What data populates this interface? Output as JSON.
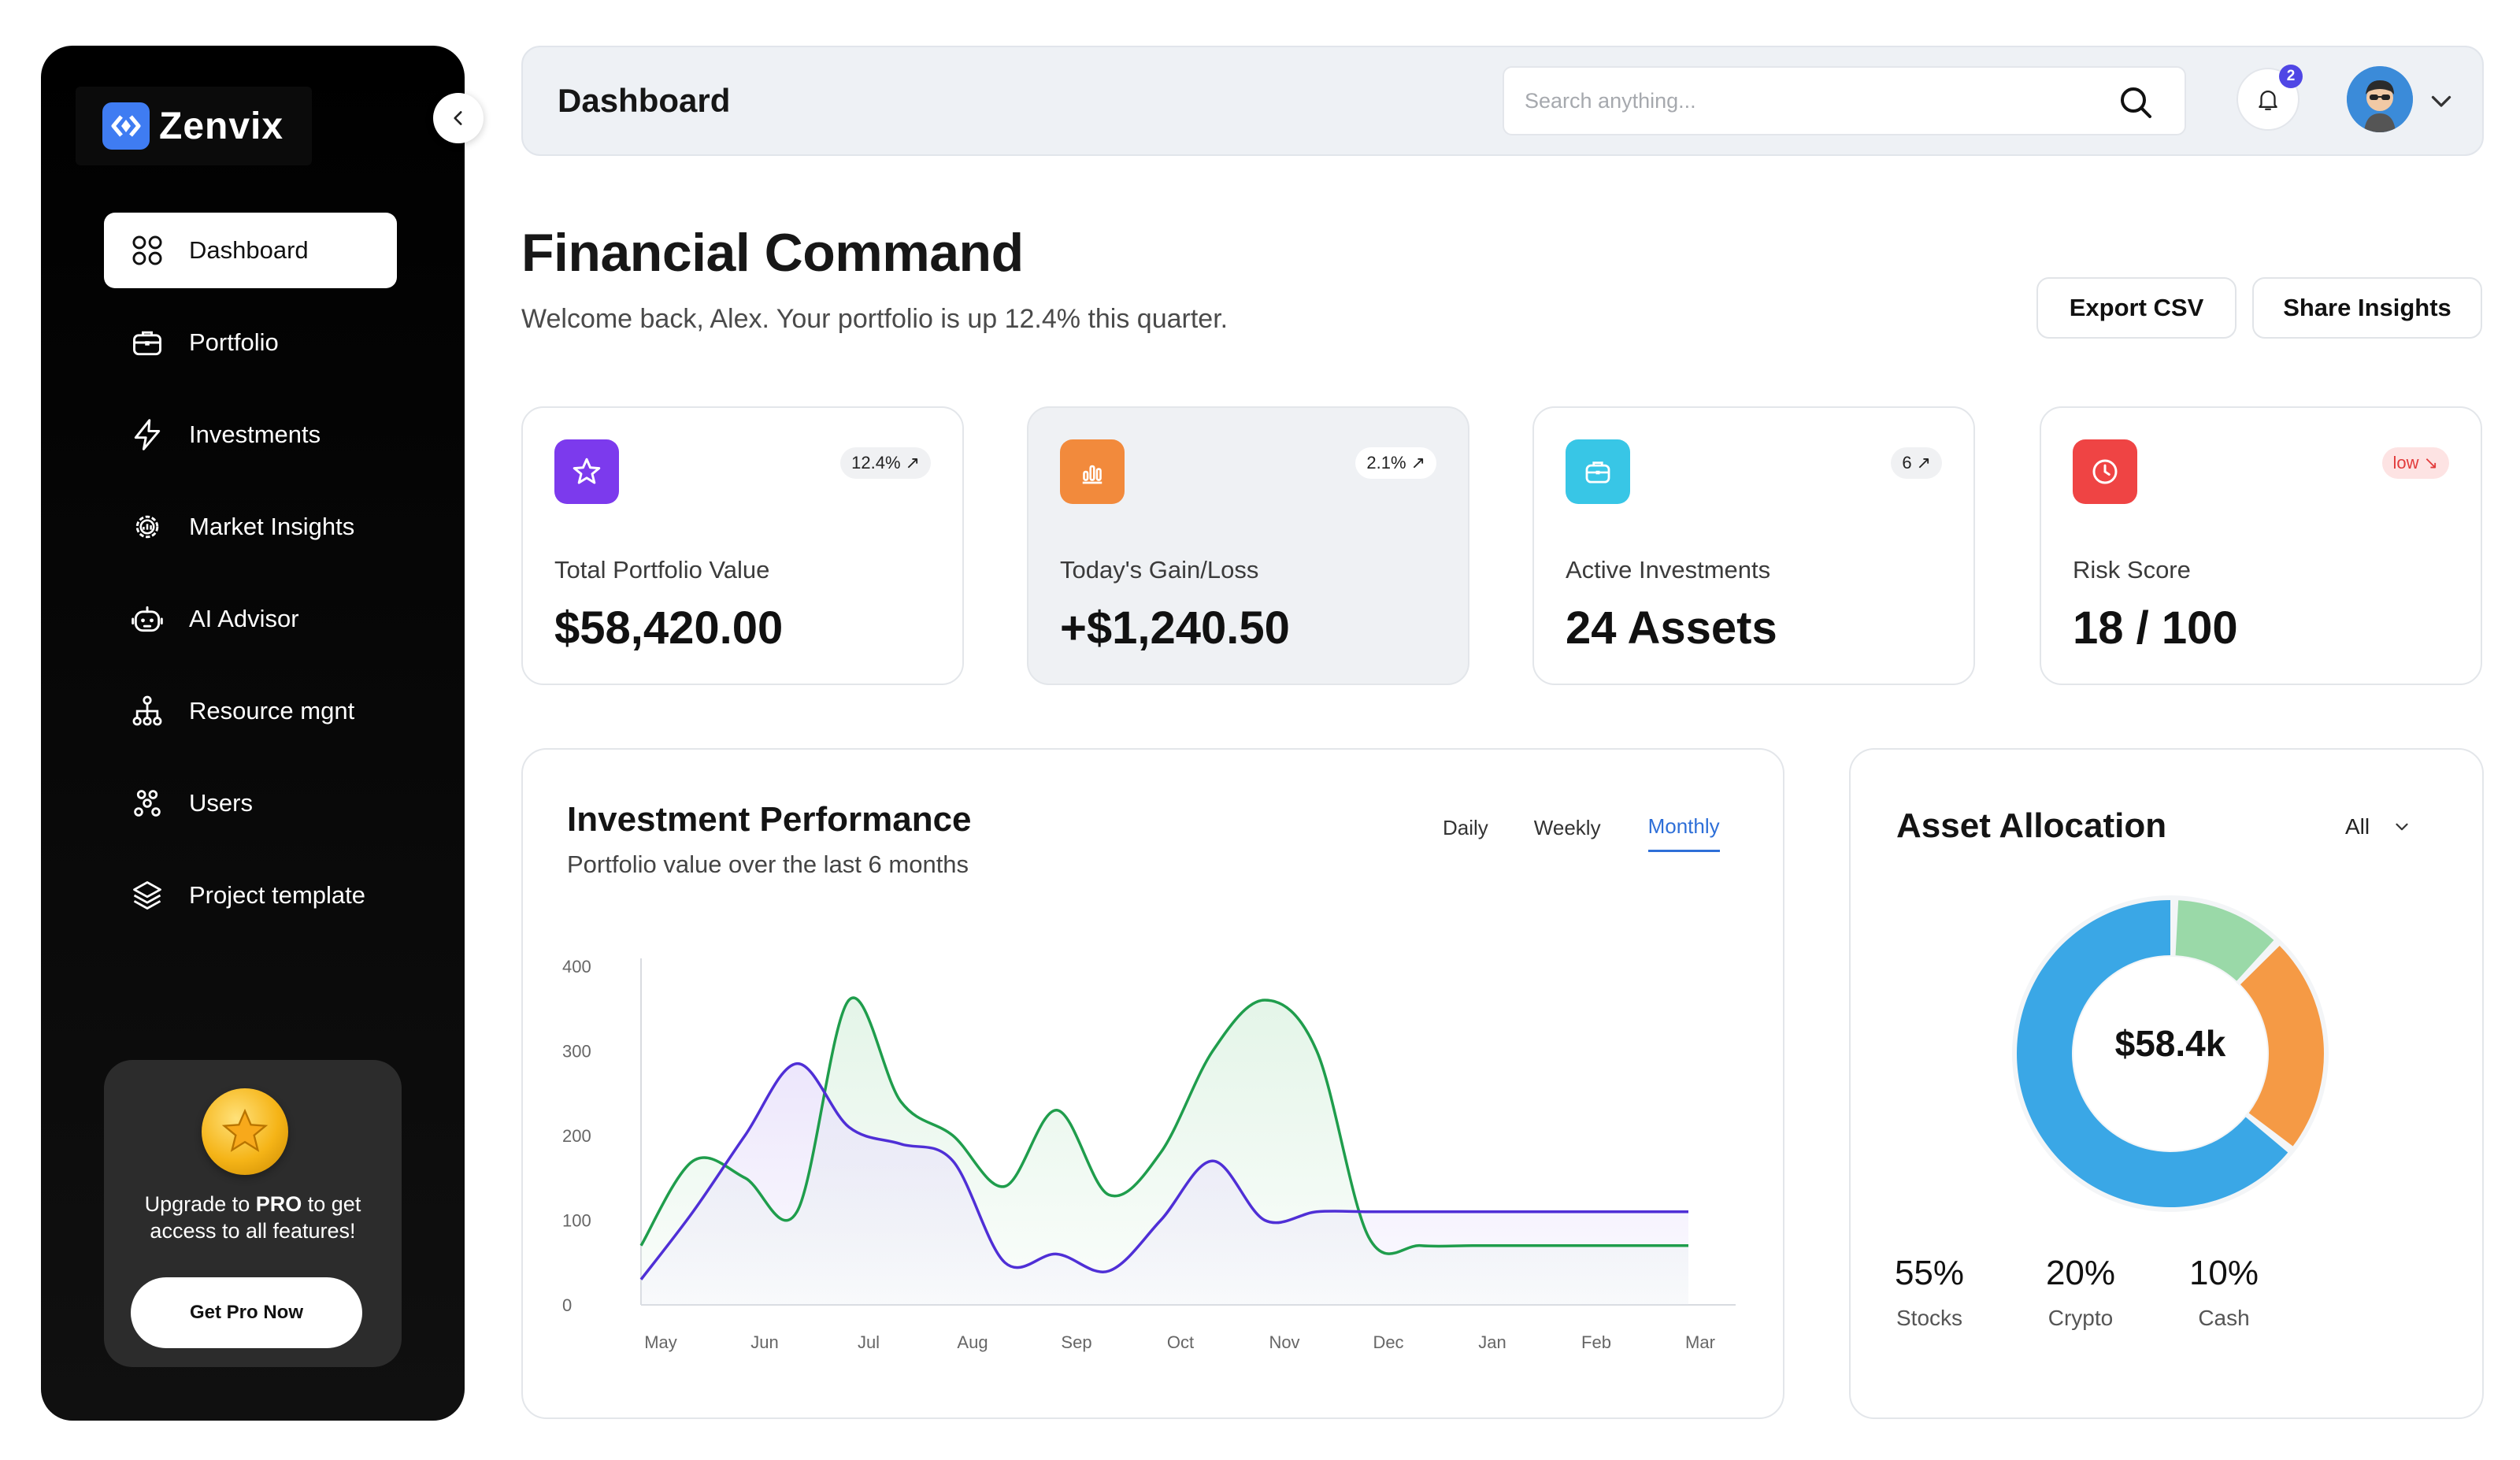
{
  "brand": {
    "name": "Zenvix"
  },
  "sidebar": {
    "items": [
      {
        "label": "Dashboard",
        "icon": "grid-icon",
        "active": true
      },
      {
        "label": "Portfolio",
        "icon": "briefcase-icon"
      },
      {
        "label": "Investments",
        "icon": "bolt-icon"
      },
      {
        "label": "Market Insights",
        "icon": "gear-chart-icon"
      },
      {
        "label": "AI Advisor",
        "icon": "robot-icon"
      },
      {
        "label": "Resource mgnt",
        "icon": "hierarchy-icon"
      },
      {
        "label": "Users",
        "icon": "users-icon"
      },
      {
        "label": "Project template",
        "icon": "layers-icon"
      }
    ],
    "promo": {
      "text_before": "Upgrade to ",
      "text_bold": "PRO",
      "text_after": " to get access to all features!",
      "button": "Get Pro Now"
    }
  },
  "header": {
    "title": "Dashboard",
    "search_placeholder": "Search anything...",
    "notification_count": "2"
  },
  "page": {
    "title": "Financial Command",
    "subtitle": "Welcome back, Alex. Your portfolio is up 12.4% this quarter.",
    "export_label": "Export CSV",
    "share_label": "Share Insights"
  },
  "stats": [
    {
      "label": "Total Portfolio Value",
      "value": "$58,420.00",
      "pill": "12.4%",
      "pill_dir": "up",
      "icon": "star-icon",
      "color": "#7c3aed"
    },
    {
      "label": "Today's Gain/Loss",
      "value": "+$1,240.50",
      "pill": "2.1%",
      "pill_dir": "up",
      "icon": "bar-chart-icon",
      "color": "#f28a3c"
    },
    {
      "label": "Active Investments",
      "value": "24 Assets",
      "pill": "6",
      "pill_dir": "up",
      "icon": "briefcase-icon",
      "color": "#38c6e6"
    },
    {
      "label": "Risk Score",
      "value": "18 / 100",
      "pill": "low",
      "pill_dir": "down",
      "icon": "clock-icon",
      "color": "#ef4444"
    }
  ],
  "performance": {
    "title": "Investment Performance",
    "subtitle": "Portfolio value over the last 6 months",
    "tabs": [
      "Daily",
      "Weekly",
      "Monthly"
    ],
    "active_tab": "Monthly"
  },
  "chart_data": {
    "type": "area",
    "categories": [
      "May",
      "Jun",
      "Jul",
      "Aug",
      "Sep",
      "Oct",
      "Nov",
      "Dec",
      "Jan",
      "Feb",
      "Mar"
    ],
    "yticks": [
      0,
      100,
      200,
      300,
      400
    ],
    "ylim": [
      0,
      400
    ],
    "series": [
      {
        "color": "#1f9d4c",
        "fill": "#dff3e4",
        "x": [
          0,
          0.5,
          1,
          1.5,
          2,
          2.5,
          3,
          3.5,
          4,
          4.5,
          5,
          5.5,
          6,
          6.5,
          7,
          7.5,
          8,
          8.5,
          9,
          9.5,
          10,
          10.2
        ],
        "values": [
          70,
          170,
          150,
          110,
          360,
          240,
          200,
          140,
          230,
          130,
          180,
          300,
          360,
          300,
          80,
          70,
          70,
          70,
          70,
          70,
          70,
          70
        ]
      },
      {
        "color": "#4f2fd6",
        "fill": "#e9e2fb",
        "x": [
          0,
          0.5,
          1,
          1.5,
          2,
          2.5,
          3,
          3.5,
          4,
          4.5,
          5,
          5.5,
          6,
          6.5,
          7,
          7.5,
          8,
          8.5,
          9,
          9.5,
          10,
          10.2
        ],
        "values": [
          30,
          110,
          200,
          285,
          210,
          190,
          170,
          50,
          60,
          40,
          100,
          170,
          100,
          110,
          110,
          110,
          110,
          110,
          110,
          110,
          110,
          110
        ]
      }
    ]
  },
  "allocation": {
    "title": "Asset Allocation",
    "filter": "All",
    "center_value": "$58.4k",
    "segments": [
      {
        "name": "Stocks",
        "pct": "55%",
        "value": 55,
        "color": "#3aa7e6"
      },
      {
        "name": "Crypto",
        "pct": "20%",
        "value": 20,
        "color": "#f59a45"
      },
      {
        "name": "Cash",
        "pct": "10%",
        "value": 10,
        "color": "#9ad9a8"
      }
    ]
  }
}
